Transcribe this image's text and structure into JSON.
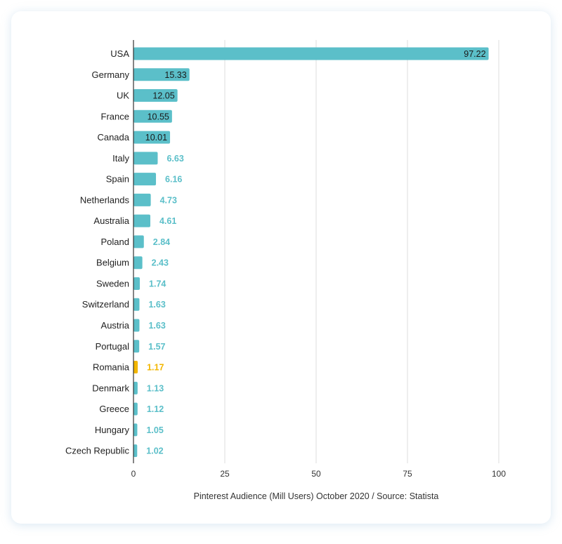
{
  "chart_data": {
    "type": "bar",
    "orientation": "horizontal",
    "categories": [
      "USA",
      "Germany",
      "UK",
      "France",
      "Canada",
      "Italy",
      "Spain",
      "Netherlands",
      "Australia",
      "Poland",
      "Belgium",
      "Sweden",
      "Switzerland",
      "Austria",
      "Portugal",
      "Romania",
      "Denmark",
      "Greece",
      "Hungary",
      "Czech Republic"
    ],
    "values": [
      97.22,
      15.33,
      12.05,
      10.55,
      10.01,
      6.63,
      6.16,
      4.73,
      4.61,
      2.84,
      2.43,
      1.74,
      1.63,
      1.63,
      1.57,
      1.17,
      1.13,
      1.12,
      1.05,
      1.02
    ],
    "value_labels": [
      "97.22",
      "15.33",
      "12.05",
      "10.55",
      "10.01",
      "6.63",
      "6.16",
      "4.73",
      "4.61",
      "2.84",
      "2.43",
      "1.74",
      "1.63",
      "1.63",
      "1.57",
      "1.17",
      "1.13",
      "1.12",
      "1.05",
      "1.02"
    ],
    "highlight_category": "Romania",
    "xlabel": "Pinterest Audience (Mill Users) October 2020 / Source: Statista",
    "xlim": [
      0,
      100
    ],
    "xticks": [
      0,
      25,
      50,
      75,
      100
    ],
    "xtick_labels": [
      "0",
      "25",
      "50",
      "75",
      "100"
    ],
    "grid": "vertical",
    "colors": {
      "bar": "#5bbfc9",
      "highlight": "#f2b600",
      "grid": "#dddddd",
      "axis": "#333333"
    }
  }
}
